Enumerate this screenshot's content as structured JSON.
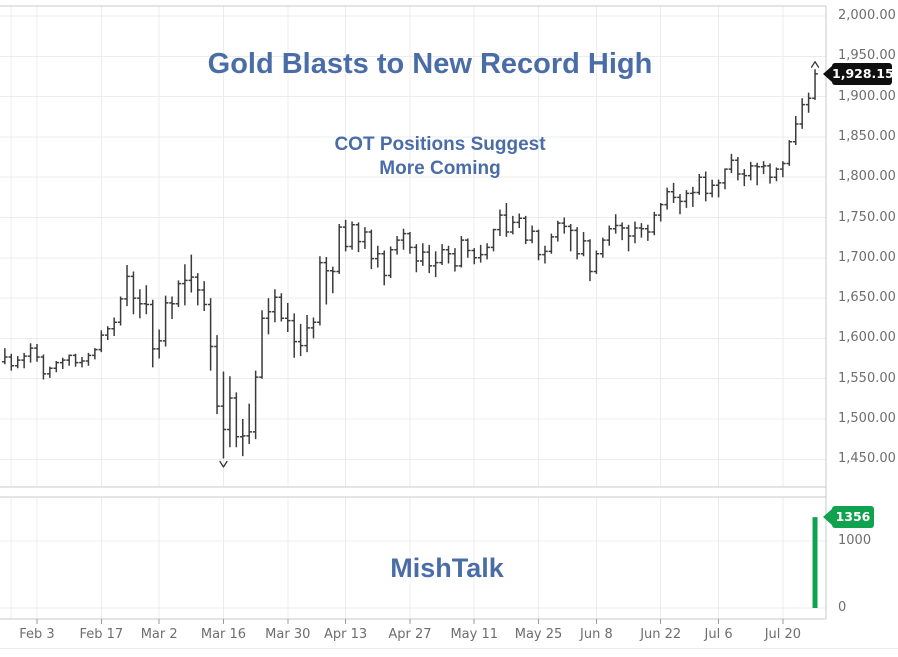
{
  "chart": {
    "title": "Gold Blasts to New Record High",
    "subtitle_line1": "COT Positions Suggest",
    "subtitle_line2": "More Coming",
    "watermark": "MishTalk",
    "last_price_label": "1,928.15",
    "last_volume_label": "1356",
    "colors": {
      "accent_blue": "#4a6da8",
      "bar_gray": "#3b3b3b",
      "volume_green": "#10a24e",
      "price_tag_black": "#0f0f0f",
      "grid_gray": "#ececec",
      "axis_text_gray": "#6e6e6e"
    }
  },
  "chart_data": {
    "type": "ohlc-bar",
    "title": "Gold Blasts to New Record High",
    "annotations": [
      "COT Positions Suggest",
      "More Coming",
      "MishTalk"
    ],
    "last_price": 1928.15,
    "price_axis": {
      "min": 1450,
      "max": 2000,
      "tick_step": 50,
      "tick_values": [
        2000,
        1950,
        1900,
        1850,
        1800,
        1750,
        1700,
        1650,
        1600,
        1550,
        1500,
        1450
      ],
      "tick_labels": [
        "2,000.00",
        "1,950.00",
        "1,900.00",
        "1,850.00",
        "1,800.00",
        "1,750.00",
        "1,700.00",
        "1,650.00",
        "1,600.00",
        "1,550.00",
        "1,500.00",
        "1,450.00"
      ]
    },
    "volume_axis": {
      "tick_values": [
        1000,
        0
      ],
      "tick_labels": [
        "1000",
        "0"
      ]
    },
    "x_ticks": [
      {
        "label": "Feb 3",
        "bar": 5
      },
      {
        "label": "Feb 17",
        "bar": 15
      },
      {
        "label": "Mar 2",
        "bar": 24
      },
      {
        "label": "Mar 16",
        "bar": 34
      },
      {
        "label": "Mar 30",
        "bar": 44
      },
      {
        "label": "Apr 13",
        "bar": 53
      },
      {
        "label": "Apr 27",
        "bar": 63
      },
      {
        "label": "May 11",
        "bar": 73
      },
      {
        "label": "May 25",
        "bar": 83
      },
      {
        "label": "Jun 8",
        "bar": 92
      },
      {
        "label": "Jun 22",
        "bar": 102
      },
      {
        "label": "Jul 6",
        "bar": 111
      },
      {
        "label": "Jul 20",
        "bar": 121
      }
    ],
    "bars": [
      [
        1571,
        1588,
        1568,
        1577
      ],
      [
        1577,
        1581,
        1560,
        1566
      ],
      [
        1566,
        1578,
        1563,
        1573
      ],
      [
        1573,
        1582,
        1563,
        1578
      ],
      [
        1578,
        1594,
        1570,
        1588
      ],
      [
        1588,
        1593,
        1571,
        1577
      ],
      [
        1577,
        1580,
        1549,
        1556
      ],
      [
        1556,
        1565,
        1551,
        1563
      ],
      [
        1563,
        1572,
        1558,
        1570
      ],
      [
        1570,
        1576,
        1562,
        1573
      ],
      [
        1573,
        1580,
        1566,
        1579
      ],
      [
        1579,
        1581,
        1565,
        1570
      ],
      [
        1570,
        1577,
        1564,
        1572
      ],
      [
        1572,
        1582,
        1566,
        1579
      ],
      [
        1579,
        1588,
        1574,
        1586
      ],
      [
        1586,
        1610,
        1583,
        1604
      ],
      [
        1604,
        1615,
        1598,
        1612
      ],
      [
        1612,
        1626,
        1603,
        1620
      ],
      [
        1620,
        1652,
        1616,
        1649
      ],
      [
        1649,
        1691,
        1640,
        1677
      ],
      [
        1677,
        1683,
        1630,
        1650
      ],
      [
        1650,
        1661,
        1625,
        1643
      ],
      [
        1643,
        1666,
        1630,
        1642
      ],
      [
        1642,
        1648,
        1564,
        1587
      ],
      [
        1587,
        1611,
        1575,
        1597
      ],
      [
        1597,
        1653,
        1590,
        1644
      ],
      [
        1644,
        1652,
        1624,
        1643
      ],
      [
        1643,
        1672,
        1639,
        1668
      ],
      [
        1668,
        1692,
        1641,
        1672
      ],
      [
        1672,
        1704,
        1657,
        1676
      ],
      [
        1676,
        1681,
        1641,
        1660
      ],
      [
        1660,
        1671,
        1634,
        1642
      ],
      [
        1642,
        1650,
        1560,
        1590
      ],
      [
        1590,
        1604,
        1506,
        1516
      ],
      [
        1516,
        1559,
        1451,
        1487
      ],
      [
        1487,
        1553,
        1465,
        1526
      ],
      [
        1526,
        1533,
        1465,
        1478
      ],
      [
        1478,
        1500,
        1454,
        1479
      ],
      [
        1479,
        1519,
        1469,
        1484
      ],
      [
        1484,
        1560,
        1475,
        1552
      ],
      [
        1552,
        1635,
        1550,
        1625
      ],
      [
        1625,
        1650,
        1605,
        1633
      ],
      [
        1633,
        1661,
        1620,
        1651
      ],
      [
        1651,
        1656,
        1621,
        1625
      ],
      [
        1625,
        1644,
        1608,
        1622
      ],
      [
        1622,
        1631,
        1576,
        1596
      ],
      [
        1596,
        1618,
        1578,
        1591
      ],
      [
        1591,
        1629,
        1583,
        1613
      ],
      [
        1613,
        1626,
        1600,
        1620
      ],
      [
        1620,
        1702,
        1616,
        1694
      ],
      [
        1694,
        1701,
        1642,
        1684
      ],
      [
        1684,
        1689,
        1656,
        1683
      ],
      [
        1683,
        1742,
        1680,
        1738
      ],
      [
        1738,
        1747,
        1708,
        1714
      ],
      [
        1714,
        1745,
        1710,
        1741
      ],
      [
        1741,
        1744,
        1707,
        1720
      ],
      [
        1720,
        1738,
        1711,
        1732
      ],
      [
        1732,
        1735,
        1686,
        1699
      ],
      [
        1699,
        1715,
        1688,
        1705
      ],
      [
        1705,
        1709,
        1666,
        1678
      ],
      [
        1678,
        1714,
        1675,
        1710
      ],
      [
        1710,
        1727,
        1704,
        1722
      ],
      [
        1722,
        1736,
        1710,
        1730
      ],
      [
        1730,
        1732,
        1705,
        1713
      ],
      [
        1713,
        1717,
        1682,
        1696
      ],
      [
        1696,
        1718,
        1690,
        1707
      ],
      [
        1707,
        1716,
        1681,
        1690
      ],
      [
        1690,
        1708,
        1676,
        1694
      ],
      [
        1694,
        1717,
        1691,
        1710
      ],
      [
        1710,
        1715,
        1693,
        1705
      ],
      [
        1705,
        1712,
        1683,
        1690
      ],
      [
        1690,
        1727,
        1688,
        1722
      ],
      [
        1722,
        1724,
        1700,
        1709
      ],
      [
        1709,
        1712,
        1692,
        1700
      ],
      [
        1700,
        1716,
        1694,
        1704
      ],
      [
        1704,
        1718,
        1698,
        1713
      ],
      [
        1713,
        1736,
        1708,
        1735
      ],
      [
        1735,
        1760,
        1727,
        1753
      ],
      [
        1753,
        1768,
        1726,
        1732
      ],
      [
        1732,
        1752,
        1729,
        1744
      ],
      [
        1744,
        1755,
        1737,
        1749
      ],
      [
        1749,
        1752,
        1717,
        1722
      ],
      [
        1722,
        1740,
        1718,
        1733
      ],
      [
        1733,
        1735,
        1697,
        1704
      ],
      [
        1704,
        1715,
        1693,
        1708
      ],
      [
        1708,
        1730,
        1705,
        1726
      ],
      [
        1726,
        1746,
        1720,
        1743
      ],
      [
        1743,
        1750,
        1730,
        1739
      ],
      [
        1739,
        1742,
        1708,
        1734
      ],
      [
        1734,
        1738,
        1698,
        1705
      ],
      [
        1705,
        1732,
        1702,
        1721
      ],
      [
        1721,
        1723,
        1671,
        1683
      ],
      [
        1683,
        1709,
        1680,
        1705
      ],
      [
        1705,
        1725,
        1700,
        1722
      ],
      [
        1722,
        1740,
        1715,
        1736
      ],
      [
        1736,
        1754,
        1730,
        1740
      ],
      [
        1740,
        1744,
        1722,
        1737
      ],
      [
        1737,
        1741,
        1708,
        1727
      ],
      [
        1727,
        1745,
        1718,
        1737
      ],
      [
        1737,
        1743,
        1725,
        1736
      ],
      [
        1736,
        1741,
        1721,
        1732
      ],
      [
        1732,
        1757,
        1728,
        1753
      ],
      [
        1753,
        1768,
        1745,
        1766
      ],
      [
        1766,
        1787,
        1760,
        1782
      ],
      [
        1782,
        1793,
        1768,
        1775
      ],
      [
        1775,
        1779,
        1754,
        1770
      ],
      [
        1770,
        1784,
        1762,
        1780
      ],
      [
        1780,
        1788,
        1763,
        1781
      ],
      [
        1781,
        1804,
        1778,
        1800
      ],
      [
        1800,
        1807,
        1770,
        1780
      ],
      [
        1780,
        1797,
        1775,
        1790
      ],
      [
        1790,
        1797,
        1775,
        1793
      ],
      [
        1793,
        1811,
        1785,
        1810
      ],
      [
        1810,
        1829,
        1805,
        1821
      ],
      [
        1821,
        1825,
        1796,
        1804
      ],
      [
        1804,
        1810,
        1789,
        1802
      ],
      [
        1802,
        1819,
        1796,
        1814
      ],
      [
        1814,
        1818,
        1790,
        1813
      ],
      [
        1813,
        1820,
        1804,
        1814
      ],
      [
        1814,
        1817,
        1792,
        1800
      ],
      [
        1800,
        1812,
        1795,
        1810
      ],
      [
        1810,
        1820,
        1800,
        1817
      ],
      [
        1817,
        1846,
        1814,
        1844
      ],
      [
        1844,
        1876,
        1840,
        1866
      ],
      [
        1866,
        1898,
        1860,
        1890
      ],
      [
        1890,
        1905,
        1880,
        1898
      ],
      [
        1898,
        1934,
        1896,
        1928.15
      ]
    ],
    "volume_bars": [
      {
        "bar": 126,
        "value": 1356
      }
    ],
    "markers": [
      {
        "type": "low-caret",
        "bar": 34,
        "price": 1451
      },
      {
        "type": "high-caret",
        "bar": 126,
        "price": 1934
      }
    ],
    "legend": null,
    "grid": true
  }
}
